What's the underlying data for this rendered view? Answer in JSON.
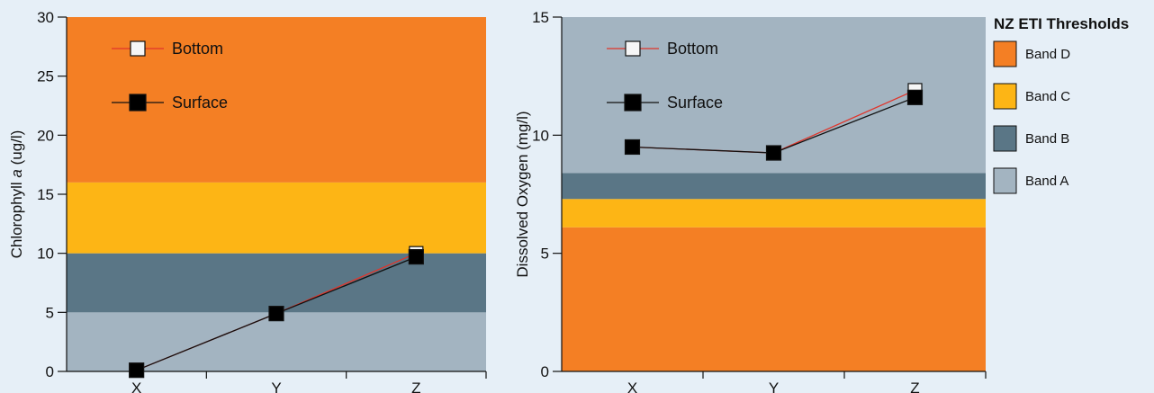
{
  "colors": {
    "band_d": "#f47f24",
    "band_c": "#fdb515",
    "band_b": "#5a7686",
    "band_a": "#a3b4c1",
    "surface_line": "#111111",
    "bottom_line": "#e0352b",
    "background": "#e6eff7"
  },
  "chart_data": [
    {
      "type": "line",
      "xlabel": "",
      "ylabel_prefix": "Chlorophyll ",
      "ylabel_italic": "a",
      "ylabel_suffix": " (ug/l)",
      "ylim": [
        0,
        30
      ],
      "yticks": [
        0,
        5,
        10,
        15,
        20,
        25,
        30
      ],
      "categories": [
        "X",
        "Y",
        "Z"
      ],
      "legend_position": "top-left",
      "bands": [
        {
          "name": "Band A",
          "from": 0,
          "to": 5,
          "color": "#a3b4c1"
        },
        {
          "name": "Band B",
          "from": 5,
          "to": 10,
          "color": "#5a7686"
        },
        {
          "name": "Band C",
          "from": 10,
          "to": 16,
          "color": "#fdb515"
        },
        {
          "name": "Band D",
          "from": 16,
          "to": 30,
          "color": "#f47f24"
        }
      ],
      "series": [
        {
          "name": "Bottom",
          "values": [
            0.1,
            4.9,
            10.0
          ]
        },
        {
          "name": "Surface",
          "values": [
            0.1,
            4.9,
            9.7
          ]
        }
      ]
    },
    {
      "type": "line",
      "xlabel": "",
      "ylabel": "Dissolved Oxygen (mg/l)",
      "ylim": [
        0,
        15
      ],
      "yticks": [
        0,
        5,
        10,
        15
      ],
      "categories": [
        "X",
        "Y",
        "Z"
      ],
      "legend_position": "top-left",
      "bands": [
        {
          "name": "Band D",
          "from": 0,
          "to": 6.1,
          "color": "#f47f24"
        },
        {
          "name": "Band C",
          "from": 6.1,
          "to": 7.3,
          "color": "#fdb515"
        },
        {
          "name": "Band B",
          "from": 7.3,
          "to": 8.4,
          "color": "#5a7686"
        },
        {
          "name": "Band A",
          "from": 8.4,
          "to": 15,
          "color": "#a3b4c1"
        }
      ],
      "series": [
        {
          "name": "Bottom",
          "values": [
            9.5,
            9.25,
            11.9
          ]
        },
        {
          "name": "Surface",
          "values": [
            9.5,
            9.25,
            11.6
          ]
        }
      ]
    }
  ],
  "thresholds_legend": {
    "title": "NZ ETI Thresholds",
    "items": [
      {
        "label": "Band D",
        "color": "#f47f24"
      },
      {
        "label": "Band C",
        "color": "#fdb515"
      },
      {
        "label": "Band B",
        "color": "#5a7686"
      },
      {
        "label": "Band A",
        "color": "#a3b4c1"
      }
    ]
  }
}
